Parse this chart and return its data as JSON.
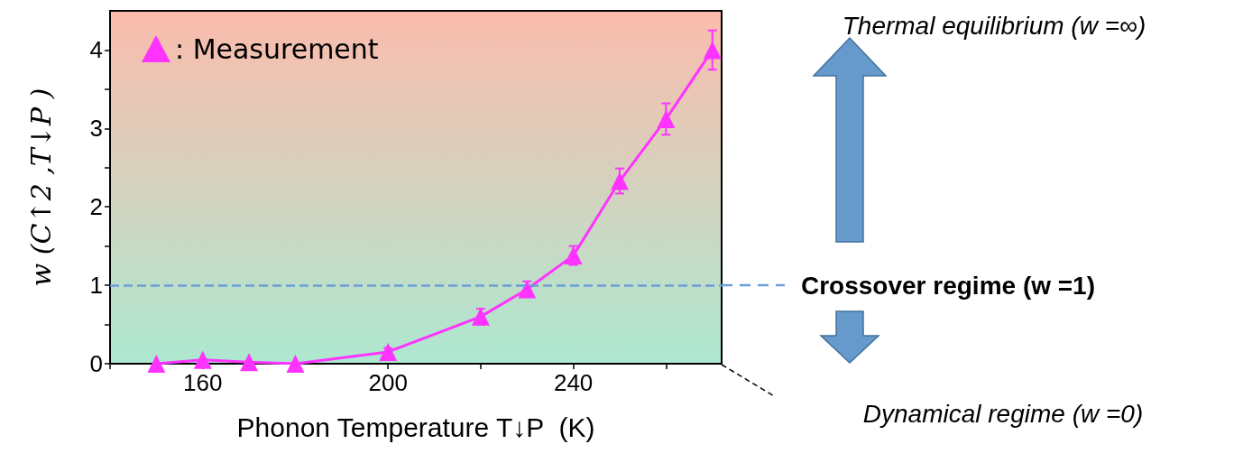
{
  "chart_data": {
    "type": "line",
    "xlabel": "Phonon Temperature T↓P  (K)",
    "ylabel": "w (C↑2 ,T↓P )",
    "x": [
      150,
      160,
      170,
      180,
      200,
      220,
      230,
      240,
      250,
      260,
      270
    ],
    "series": [
      {
        "name": ": Measurement",
        "color": "#ff33ff",
        "values": [
          0,
          0.05,
          0.02,
          0,
          0.15,
          0.6,
          0.95,
          1.38,
          2.33,
          3.12,
          4.0
        ],
        "errors": [
          null,
          null,
          null,
          null,
          0.05,
          0.1,
          0.1,
          0.12,
          0.16,
          0.2,
          0.25
        ]
      }
    ],
    "xlim": [
      140,
      272
    ],
    "xticks": [
      {
        "value": 140,
        "label": null
      },
      160,
      {
        "value": 180,
        "label": null
      },
      200,
      {
        "value": 220,
        "label": null
      },
      240,
      {
        "value": 260,
        "label": null
      }
    ],
    "ylim": [
      0,
      4.5
    ],
    "yticks": [
      0,
      {
        "value": 0.5,
        "label": null
      },
      1,
      {
        "value": 1.5,
        "label": null
      },
      2,
      {
        "value": 2.5,
        "label": null
      },
      3,
      {
        "value": 3.5,
        "label": null
      },
      4
    ],
    "marker": "triangle",
    "legend": "top left",
    "grid": false,
    "ref_lines": [
      {
        "axis": "y",
        "value": 1,
        "label": "Crossover regime (w =1)",
        "color": "#6a9fd8",
        "line_style": "dashed"
      }
    ],
    "annotations": [
      "Thermal equilibrium (w =∞)",
      "Dynamical regime (w =0)"
    ]
  }
}
